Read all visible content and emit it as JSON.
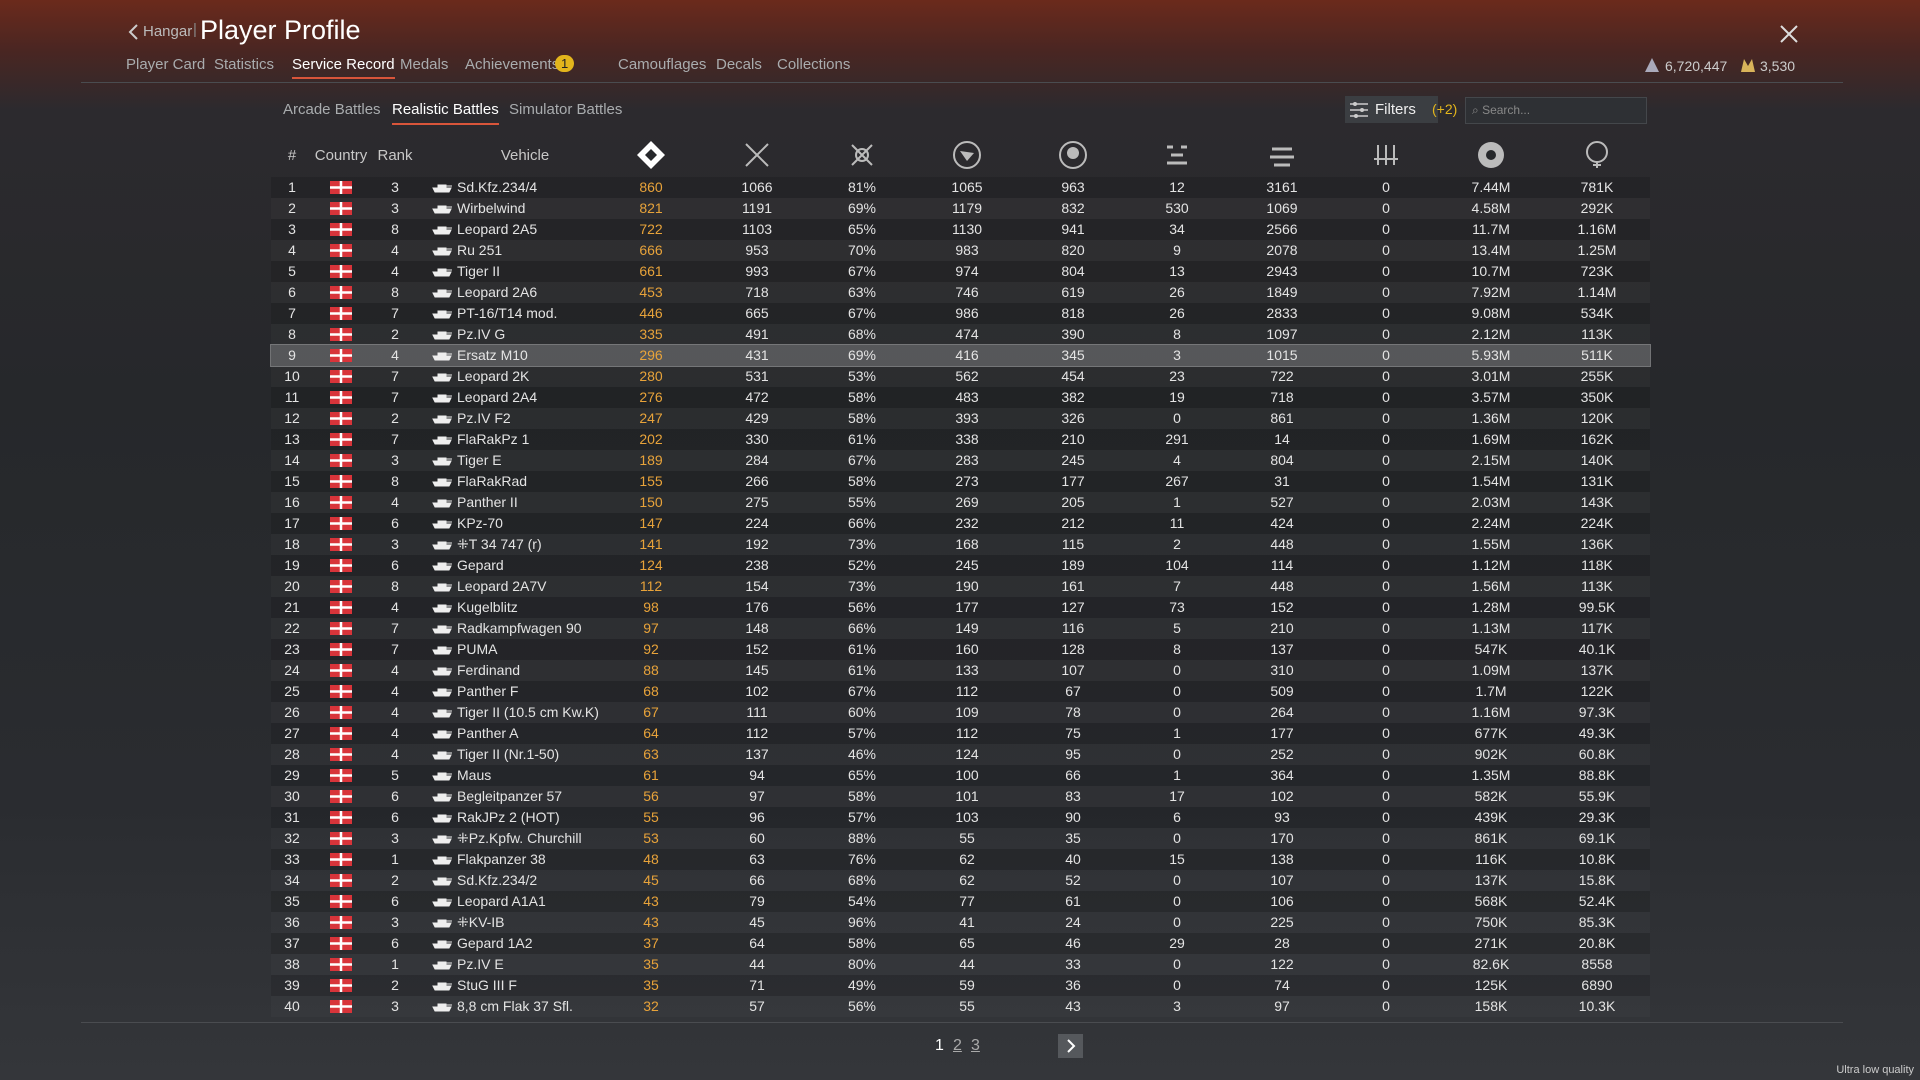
{
  "header": {
    "back": "Hangar",
    "title": "Player Profile"
  },
  "nav_tabs": [
    "Player Card",
    "Statistics",
    "Service Record",
    "Medals",
    "Achievements",
    "Camouflages",
    "Decals",
    "Collections"
  ],
  "achievements_badge": "1",
  "currency": {
    "silver": "6,720,447",
    "gold": "3,530"
  },
  "battle_tabs": [
    "Arcade Battles",
    "Realistic Battles",
    "Simulator Battles"
  ],
  "filters": {
    "label": "Filters",
    "count": "(+2)",
    "search_placeholder": "Search..."
  },
  "table": {
    "columns": [
      "#",
      "Country",
      "Rank",
      "Vehicle"
    ],
    "rows": [
      [
        "1",
        "3",
        "Sd.Kfz.234/4",
        "860",
        "1066",
        "81%",
        "1065",
        "963",
        "12",
        "3161",
        "0",
        "7.44M",
        "781K"
      ],
      [
        "2",
        "3",
        "Wirbelwind",
        "821",
        "1191",
        "69%",
        "1179",
        "832",
        "530",
        "1069",
        "0",
        "4.58M",
        "292K"
      ],
      [
        "3",
        "8",
        "Leopard 2A5",
        "722",
        "1103",
        "65%",
        "1130",
        "941",
        "34",
        "2566",
        "0",
        "11.7M",
        "1.16M"
      ],
      [
        "4",
        "4",
        "Ru 251",
        "666",
        "953",
        "70%",
        "983",
        "820",
        "9",
        "2078",
        "0",
        "13.4M",
        "1.25M"
      ],
      [
        "5",
        "4",
        "Tiger II",
        "661",
        "993",
        "67%",
        "974",
        "804",
        "13",
        "2943",
        "0",
        "10.7M",
        "723K"
      ],
      [
        "6",
        "8",
        "Leopard 2A6",
        "453",
        "718",
        "63%",
        "746",
        "619",
        "26",
        "1849",
        "0",
        "7.92M",
        "1.14M"
      ],
      [
        "7",
        "7",
        "PT-16/T14 mod.",
        "446",
        "665",
        "67%",
        "986",
        "818",
        "26",
        "2833",
        "0",
        "9.08M",
        "534K"
      ],
      [
        "8",
        "2",
        "Pz.IV G",
        "335",
        "491",
        "68%",
        "474",
        "390",
        "8",
        "1097",
        "0",
        "2.12M",
        "113K"
      ],
      [
        "9",
        "4",
        "Ersatz M10",
        "296",
        "431",
        "69%",
        "416",
        "345",
        "3",
        "1015",
        "0",
        "5.93M",
        "511K"
      ],
      [
        "10",
        "7",
        "Leopard 2K",
        "280",
        "531",
        "53%",
        "562",
        "454",
        "23",
        "722",
        "0",
        "3.01M",
        "255K"
      ],
      [
        "11",
        "7",
        "Leopard 2A4",
        "276",
        "472",
        "58%",
        "483",
        "382",
        "19",
        "718",
        "0",
        "3.57M",
        "350K"
      ],
      [
        "12",
        "2",
        "Pz.IV F2",
        "247",
        "429",
        "58%",
        "393",
        "326",
        "0",
        "861",
        "0",
        "1.36M",
        "120K"
      ],
      [
        "13",
        "7",
        "FlaRakPz 1",
        "202",
        "330",
        "61%",
        "338",
        "210",
        "291",
        "14",
        "0",
        "1.69M",
        "162K"
      ],
      [
        "14",
        "3",
        "Tiger E",
        "189",
        "284",
        "67%",
        "283",
        "245",
        "4",
        "804",
        "0",
        "2.15M",
        "140K"
      ],
      [
        "15",
        "8",
        "FlaRakRad",
        "155",
        "266",
        "58%",
        "273",
        "177",
        "267",
        "31",
        "0",
        "1.54M",
        "131K"
      ],
      [
        "16",
        "4",
        "Panther II",
        "150",
        "275",
        "55%",
        "269",
        "205",
        "1",
        "527",
        "0",
        "2.03M",
        "143K"
      ],
      [
        "17",
        "6",
        "KPz-70",
        "147",
        "224",
        "66%",
        "232",
        "212",
        "11",
        "424",
        "0",
        "2.24M",
        "224K"
      ],
      [
        "18",
        "3",
        "⁜T 34 747 (r)",
        "141",
        "192",
        "73%",
        "168",
        "115",
        "2",
        "448",
        "0",
        "1.55M",
        "136K"
      ],
      [
        "19",
        "6",
        "Gepard",
        "124",
        "238",
        "52%",
        "245",
        "189",
        "104",
        "114",
        "0",
        "1.12M",
        "118K"
      ],
      [
        "20",
        "8",
        "Leopard 2A7V",
        "112",
        "154",
        "73%",
        "190",
        "161",
        "7",
        "448",
        "0",
        "1.56M",
        "113K"
      ],
      [
        "21",
        "4",
        "Kugelblitz",
        "98",
        "176",
        "56%",
        "177",
        "127",
        "73",
        "152",
        "0",
        "1.28M",
        "99.5K"
      ],
      [
        "22",
        "7",
        "Radkampfwagen 90",
        "97",
        "148",
        "66%",
        "149",
        "116",
        "5",
        "210",
        "0",
        "1.13M",
        "117K"
      ],
      [
        "23",
        "7",
        "PUMA",
        "92",
        "152",
        "61%",
        "160",
        "128",
        "8",
        "137",
        "0",
        "547K",
        "40.1K"
      ],
      [
        "24",
        "4",
        "Ferdinand",
        "88",
        "145",
        "61%",
        "133",
        "107",
        "0",
        "310",
        "0",
        "1.09M",
        "137K"
      ],
      [
        "25",
        "4",
        "Panther F",
        "68",
        "102",
        "67%",
        "112",
        "67",
        "0",
        "509",
        "0",
        "1.7M",
        "122K"
      ],
      [
        "26",
        "4",
        "Tiger II (10.5 cm Kw.K)",
        "67",
        "111",
        "60%",
        "109",
        "78",
        "0",
        "264",
        "0",
        "1.16M",
        "97.3K"
      ],
      [
        "27",
        "4",
        "Panther A",
        "64",
        "112",
        "57%",
        "112",
        "75",
        "1",
        "177",
        "0",
        "677K",
        "49.3K"
      ],
      [
        "28",
        "4",
        "Tiger II (Nr.1-50)",
        "63",
        "137",
        "46%",
        "124",
        "95",
        "0",
        "252",
        "0",
        "902K",
        "60.8K"
      ],
      [
        "29",
        "5",
        "Maus",
        "61",
        "94",
        "65%",
        "100",
        "66",
        "1",
        "364",
        "0",
        "1.35M",
        "88.8K"
      ],
      [
        "30",
        "6",
        "Begleitpanzer 57",
        "56",
        "97",
        "58%",
        "101",
        "83",
        "17",
        "102",
        "0",
        "582K",
        "55.9K"
      ],
      [
        "31",
        "6",
        "RakJPz 2 (HOT)",
        "55",
        "96",
        "57%",
        "103",
        "90",
        "6",
        "93",
        "0",
        "439K",
        "29.3K"
      ],
      [
        "32",
        "3",
        "⁜Pz.Kpfw. Churchill",
        "53",
        "60",
        "88%",
        "55",
        "35",
        "0",
        "170",
        "0",
        "861K",
        "69.1K"
      ],
      [
        "33",
        "1",
        "Flakpanzer 38",
        "48",
        "63",
        "76%",
        "62",
        "40",
        "15",
        "138",
        "0",
        "116K",
        "10.8K"
      ],
      [
        "34",
        "2",
        "Sd.Kfz.234/2",
        "45",
        "66",
        "68%",
        "62",
        "52",
        "0",
        "107",
        "0",
        "137K",
        "15.8K"
      ],
      [
        "35",
        "6",
        "Leopard A1A1",
        "43",
        "79",
        "54%",
        "77",
        "61",
        "0",
        "106",
        "0",
        "568K",
        "52.4K"
      ],
      [
        "36",
        "3",
        "⁜KV-IB",
        "43",
        "45",
        "96%",
        "41",
        "24",
        "0",
        "225",
        "0",
        "750K",
        "85.3K"
      ],
      [
        "37",
        "6",
        "Gepard 1A2",
        "37",
        "64",
        "58%",
        "65",
        "46",
        "29",
        "28",
        "0",
        "271K",
        "20.8K"
      ],
      [
        "38",
        "1",
        "Pz.IV E",
        "35",
        "44",
        "80%",
        "44",
        "33",
        "0",
        "122",
        "0",
        "82.6K",
        "8558"
      ],
      [
        "39",
        "2",
        "StuG III F",
        "35",
        "71",
        "49%",
        "59",
        "36",
        "0",
        "74",
        "0",
        "125K",
        "6890"
      ],
      [
        "40",
        "3",
        "8,8 cm Flak 37 Sfl.",
        "32",
        "57",
        "56%",
        "55",
        "43",
        "3",
        "97",
        "0",
        "158K",
        "10.3K"
      ]
    ]
  },
  "pagination": {
    "pages": [
      "1",
      "2",
      "3"
    ]
  },
  "footer": "Ultra low quality"
}
